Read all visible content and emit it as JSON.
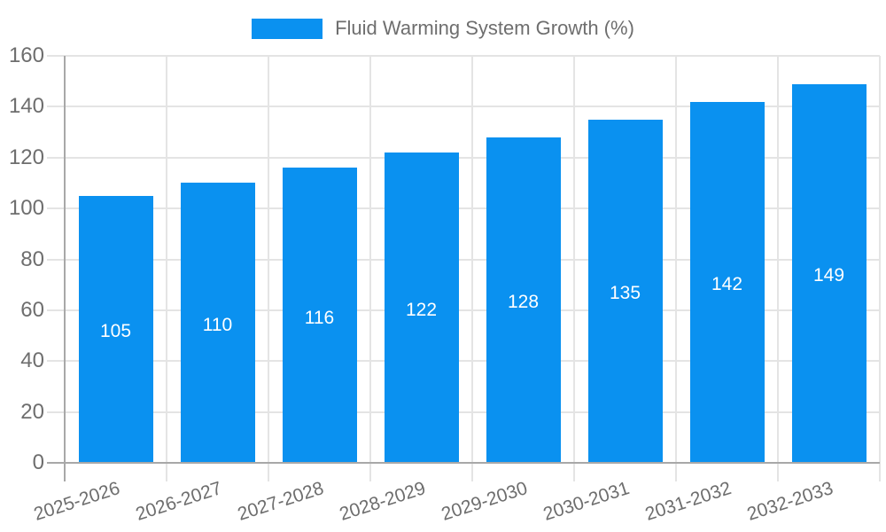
{
  "legend": {
    "label": "Fluid Warming System Growth (%)"
  },
  "chart_data": {
    "type": "bar",
    "title": "Fluid Warming System Growth (%)",
    "categories": [
      "2025-2026",
      "2026-2027",
      "2027-2028",
      "2028-2029",
      "2029-2030",
      "2030-2031",
      "2031-2032",
      "2032-2033"
    ],
    "values": [
      105,
      110,
      116,
      122,
      128,
      135,
      142,
      149
    ],
    "bar_labels": [
      "105",
      "110",
      "116",
      "122",
      "128",
      "135",
      "142",
      "149"
    ],
    "xlabel": "",
    "ylabel": "",
    "ylim": [
      0,
      160
    ],
    "ytick_step": 20,
    "ytick_labels": [
      "0",
      "20",
      "40",
      "60",
      "80",
      "100",
      "120",
      "140",
      "160"
    ],
    "grid": true,
    "legend_position": "top",
    "colors": {
      "bar": "#0a91f0",
      "grid": "#e4e4e4",
      "axis": "#a8a8a8",
      "tick_text": "#6e6e6e",
      "bar_label_text": "#ffffff",
      "background": "#ffffff"
    }
  }
}
